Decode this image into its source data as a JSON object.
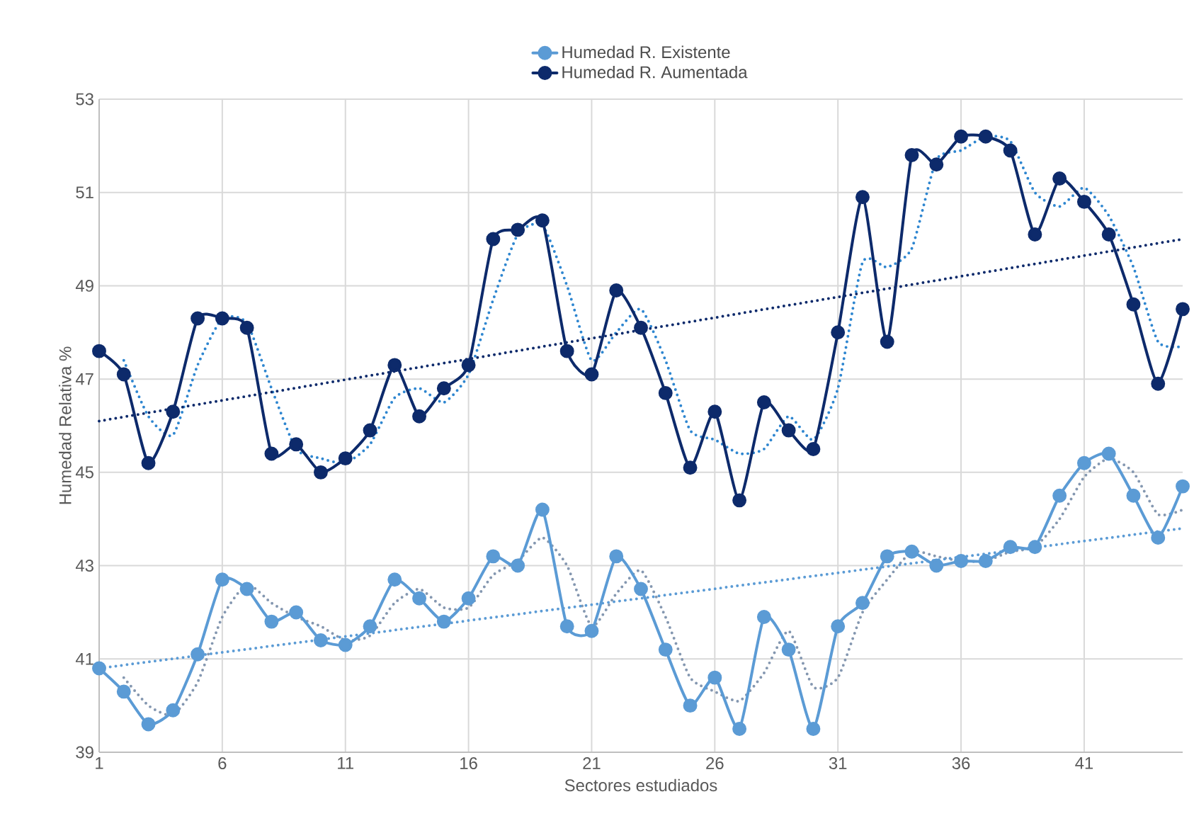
{
  "chart_data": {
    "type": "line",
    "xlabel": "Sectores estudiados",
    "ylabel": "Humedad Relativa %",
    "xlim": [
      1,
      45
    ],
    "xticks": [
      1,
      6,
      11,
      16,
      21,
      26,
      31,
      36,
      41
    ],
    "ylim": [
      39,
      53
    ],
    "yticks": [
      39,
      41,
      43,
      45,
      47,
      49,
      51,
      53
    ],
    "grid": true,
    "legend": "top",
    "marker": "circle",
    "line_style": "solid",
    "x": [
      1,
      2,
      3,
      4,
      5,
      6,
      7,
      8,
      9,
      10,
      11,
      12,
      13,
      14,
      15,
      16,
      17,
      18,
      19,
      20,
      21,
      22,
      23,
      24,
      25,
      26,
      27,
      28,
      29,
      30,
      31,
      32,
      33,
      34,
      35,
      36,
      37,
      38,
      39,
      40,
      41,
      42,
      43,
      44,
      45
    ],
    "series": [
      {
        "name": "Humedad R. Existente",
        "color": "#5b9bd5",
        "values": [
          40.8,
          40.3,
          39.6,
          39.9,
          41.1,
          42.7,
          42.5,
          41.8,
          42.0,
          41.4,
          41.3,
          41.7,
          42.7,
          42.3,
          41.8,
          42.3,
          43.2,
          43.0,
          44.2,
          41.7,
          41.6,
          43.2,
          42.5,
          41.2,
          40.0,
          40.6,
          39.5,
          41.9,
          41.2,
          39.5,
          41.7,
          42.2,
          43.2,
          43.3,
          43.0,
          43.1,
          43.1,
          43.4,
          43.4,
          44.5,
          45.2,
          45.4,
          44.5,
          43.6,
          44.7
        ]
      },
      {
        "name": "Humedad R. Aumentada",
        "color": "#0d2a6b",
        "values": [
          47.6,
          47.1,
          45.2,
          46.3,
          48.3,
          48.3,
          48.1,
          45.4,
          45.6,
          45.0,
          45.3,
          45.9,
          47.3,
          46.2,
          46.8,
          47.3,
          50.0,
          50.2,
          50.4,
          47.6,
          47.1,
          48.9,
          48.1,
          46.7,
          45.1,
          46.3,
          44.4,
          46.5,
          45.9,
          45.5,
          48.0,
          50.9,
          47.8,
          51.8,
          51.6,
          52.2,
          52.2,
          51.9,
          50.1,
          51.3,
          50.8,
          50.1,
          48.6,
          46.9,
          48.5
        ]
      },
      {
        "color": "#8497b0",
        "marker": "none",
        "line_style": "dotted",
        "x": [
          2,
          3,
          4,
          5,
          6,
          7,
          8,
          9,
          10,
          11,
          12,
          13,
          14,
          15,
          16,
          17,
          18,
          19,
          20,
          21,
          22,
          23,
          24,
          25,
          26,
          27,
          28,
          29,
          30,
          31,
          32,
          33,
          34,
          35,
          36,
          37,
          38,
          39,
          40,
          41,
          42,
          43,
          44,
          45
        ],
        "values": [
          40.6,
          40.0,
          39.8,
          40.5,
          41.9,
          42.6,
          42.2,
          41.9,
          41.7,
          41.4,
          41.5,
          42.2,
          42.5,
          42.1,
          42.1,
          42.8,
          43.1,
          43.6,
          43.0,
          41.7,
          42.4,
          42.9,
          41.9,
          40.6,
          40.3,
          40.1,
          40.7,
          41.6,
          40.4,
          40.6,
          42.0,
          42.7,
          43.3,
          43.2,
          43.1,
          43.1,
          43.3,
          43.4,
          44.0,
          44.9,
          45.3,
          45.0,
          44.1,
          44.2
        ]
      },
      {
        "color": "#2e86d0",
        "marker": "none",
        "line_style": "dotted",
        "x": [
          2,
          3,
          4,
          5,
          6,
          7,
          8,
          9,
          10,
          11,
          12,
          13,
          14,
          15,
          16,
          17,
          18,
          19,
          20,
          21,
          22,
          23,
          24,
          25,
          26,
          27,
          28,
          29,
          30,
          31,
          32,
          33,
          34,
          35,
          36,
          37,
          38,
          39,
          40,
          41,
          42,
          43,
          44,
          45
        ],
        "values": [
          47.4,
          46.2,
          45.8,
          47.3,
          48.3,
          48.2,
          46.8,
          45.5,
          45.3,
          45.2,
          45.6,
          46.6,
          46.8,
          46.5,
          47.1,
          48.7,
          50.1,
          50.3,
          49.0,
          47.4,
          48.0,
          48.5,
          47.4,
          45.9,
          45.7,
          45.4,
          45.5,
          46.2,
          45.7,
          46.8,
          49.5,
          49.4,
          49.8,
          51.7,
          51.9,
          52.2,
          52.1,
          51.0,
          50.7,
          51.1,
          50.5,
          49.4,
          47.8,
          47.7
        ]
      },
      {
        "color": "#5b9bd5",
        "marker": "none",
        "line_style": "dotted",
        "x": [
          1,
          45
        ],
        "values": [
          40.8,
          43.8
        ]
      },
      {
        "color": "#0d2a6b",
        "marker": "none",
        "line_style": "dotted",
        "x": [
          1,
          45
        ],
        "values": [
          46.1,
          50.0
        ]
      }
    ]
  }
}
